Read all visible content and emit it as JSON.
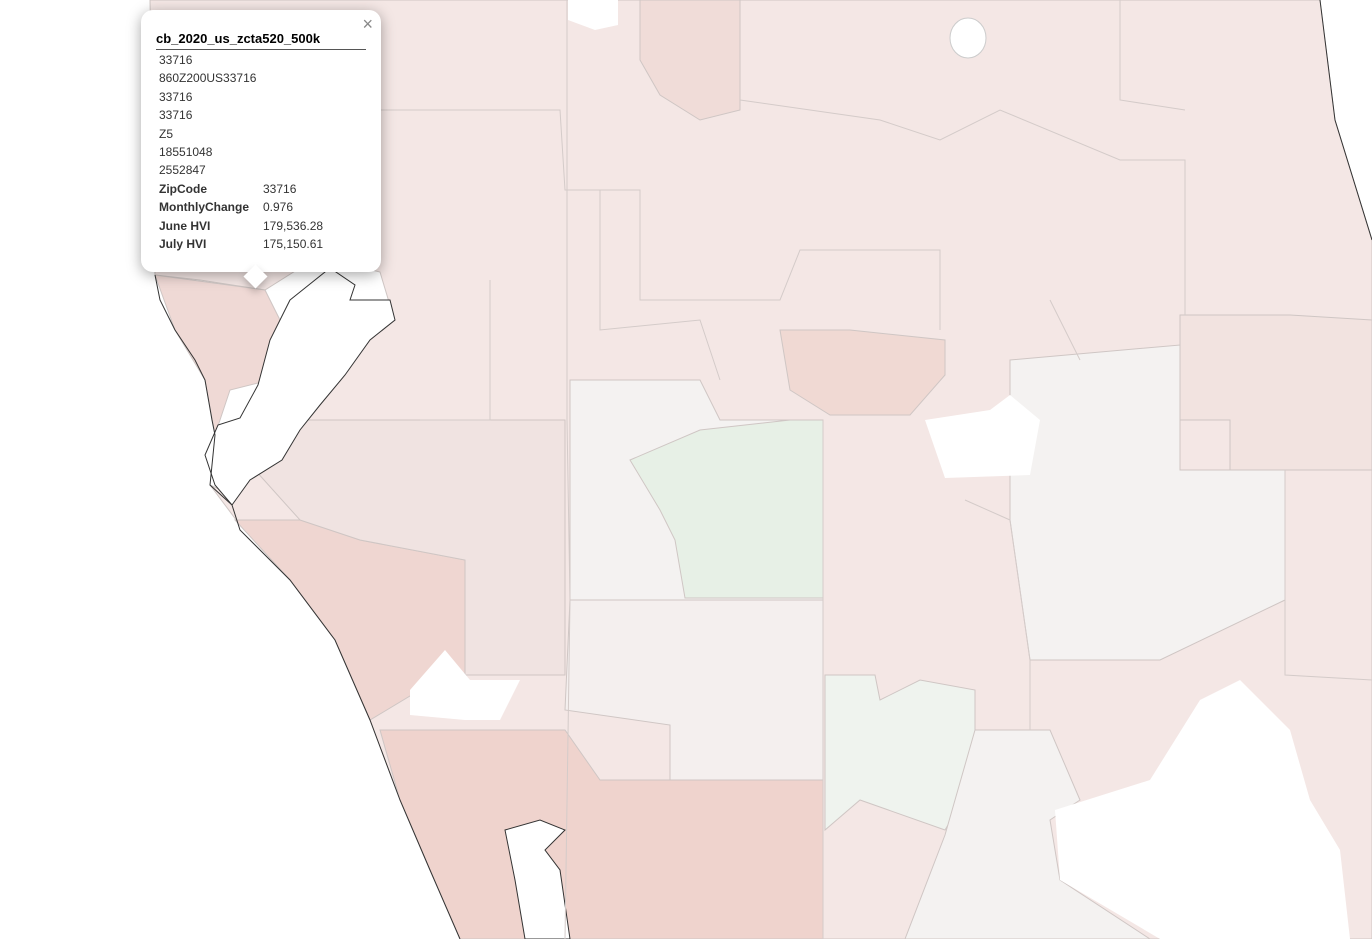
{
  "popup": {
    "title": "cb_2020_us_zcta520_500k",
    "close": "×",
    "values": [
      "33716",
      "860Z200US33716",
      "33716",
      "33716",
      "Z5",
      "18551048",
      "2552847"
    ],
    "fields": [
      {
        "label": "ZipCode",
        "value": "33716"
      },
      {
        "label": "MonthlyChange",
        "value": "0.976"
      },
      {
        "label": "June HVI",
        "value": "179,536.28"
      },
      {
        "label": "July HVI",
        "value": "175,150.61"
      }
    ]
  }
}
